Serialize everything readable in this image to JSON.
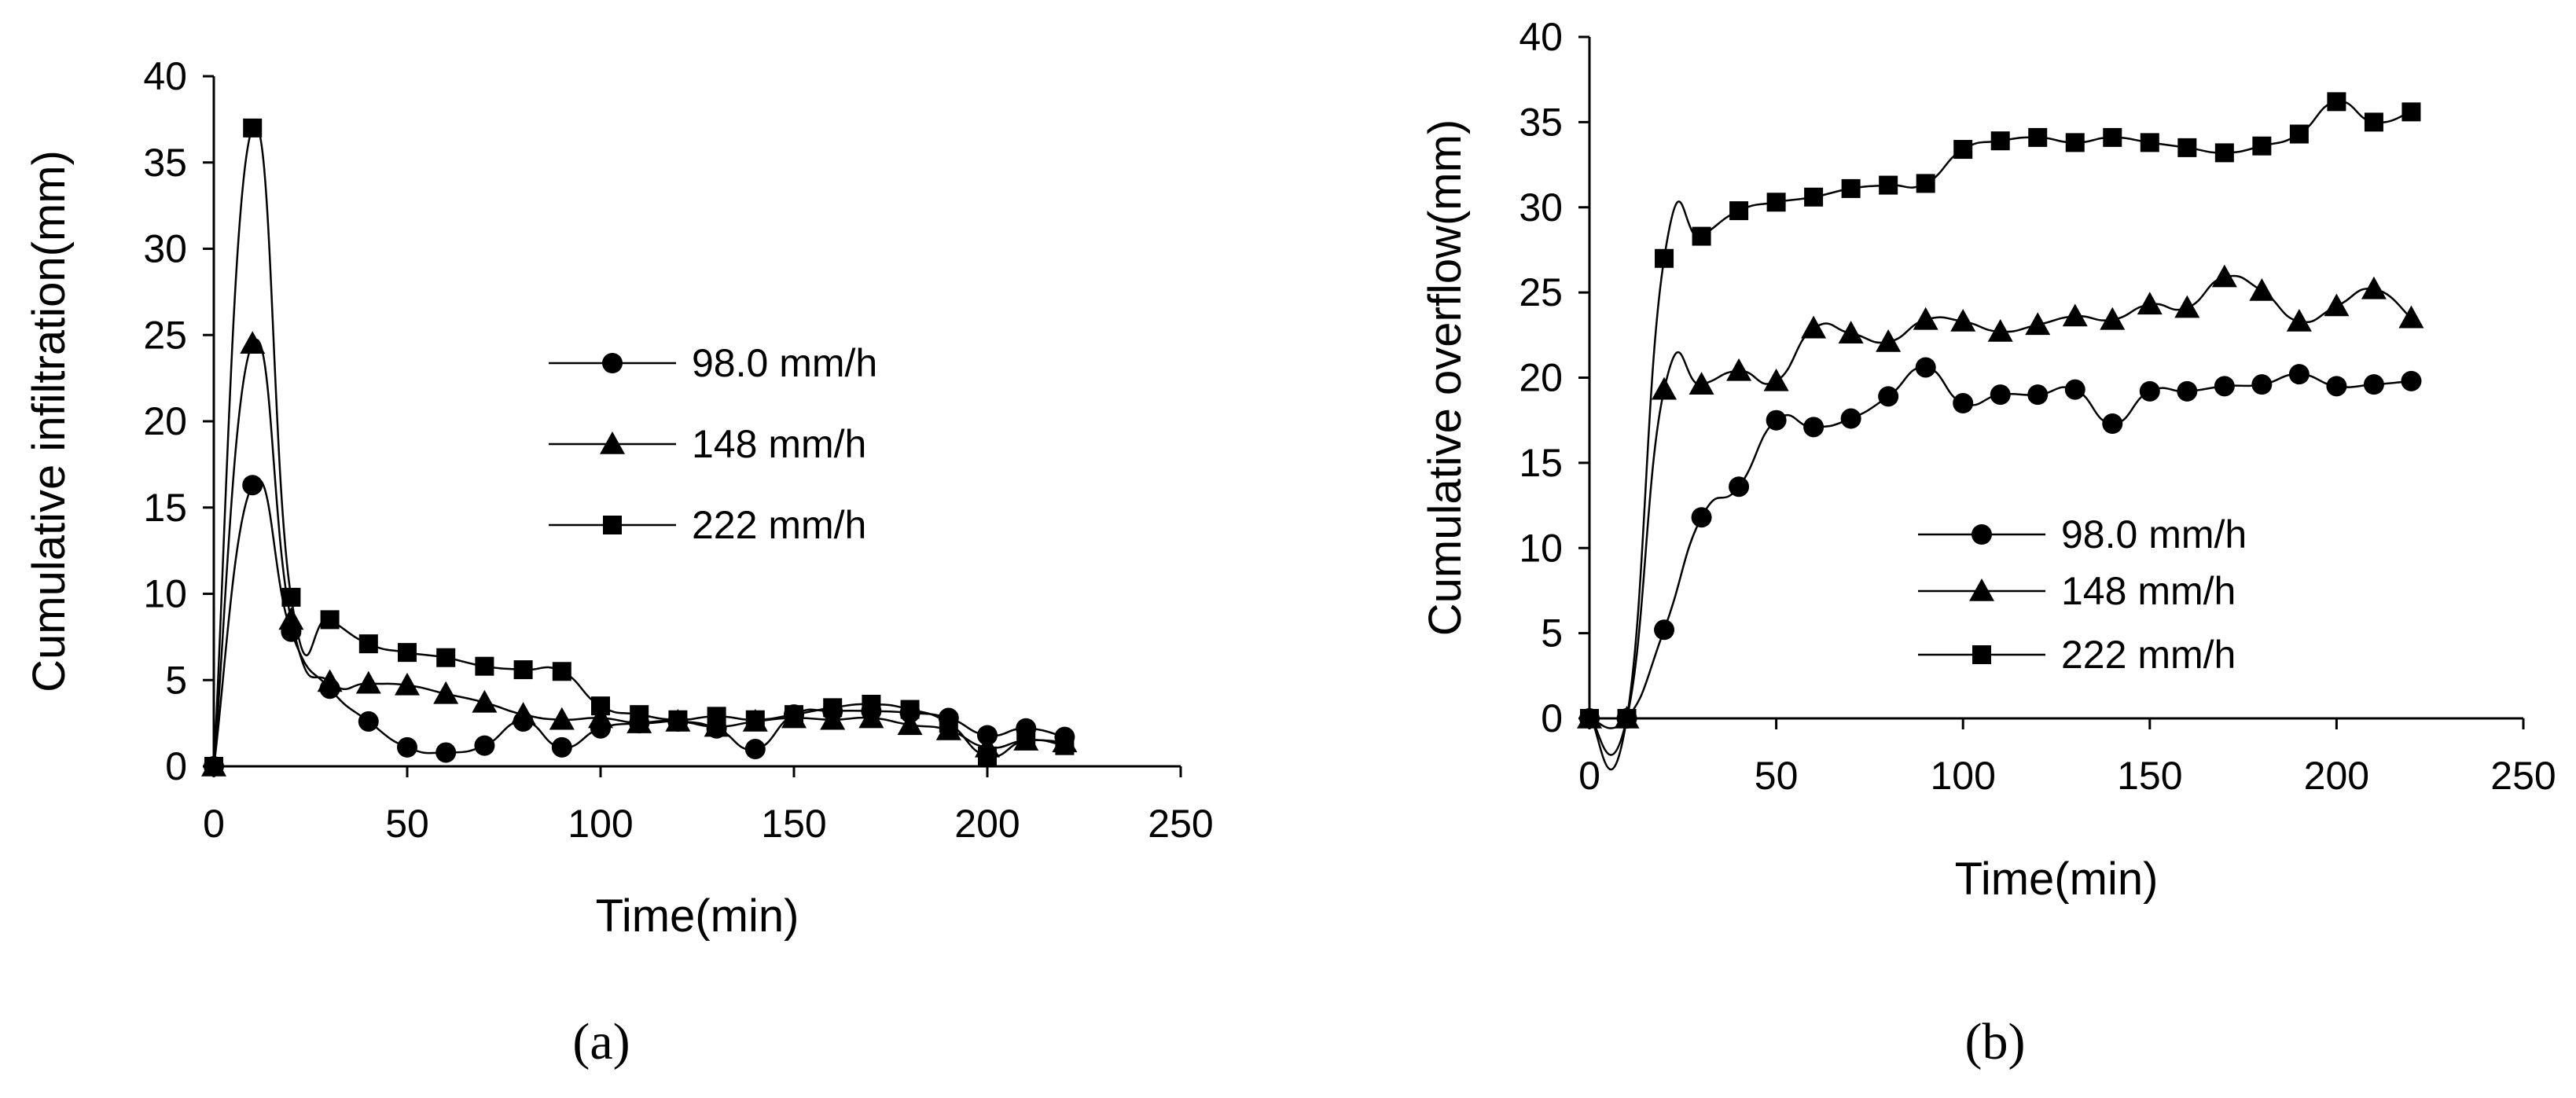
{
  "chart_data": [
    {
      "type": "line",
      "panel_label": "(a)",
      "xlabel": "Time(min)",
      "ylabel": "Cumulative infiltration(mm)",
      "xlim": [
        0,
        250
      ],
      "ylim": [
        0,
        40
      ],
      "xticks": [
        0,
        50,
        100,
        150,
        200,
        250
      ],
      "yticks": [
        0,
        5,
        10,
        15,
        20,
        25,
        30,
        35,
        40
      ],
      "x": [
        0,
        10,
        20,
        30,
        40,
        50,
        60,
        70,
        80,
        90,
        100,
        110,
        120,
        130,
        140,
        150,
        160,
        170,
        180,
        190,
        200,
        210,
        220
      ],
      "legend_position": "center-right",
      "series": [
        {
          "name": "98.0 mm/h",
          "marker": "circle",
          "values": [
            0,
            16.3,
            7.8,
            4.5,
            2.6,
            1.1,
            0.8,
            1.2,
            2.6,
            1.1,
            2.2,
            2.5,
            2.6,
            2.2,
            1.0,
            3.0,
            3.2,
            3.2,
            3.1,
            2.8,
            1.8,
            2.2,
            1.7
          ]
        },
        {
          "name": "148 mm/h",
          "marker": "triangle",
          "values": [
            0,
            24.5,
            8.5,
            4.9,
            4.8,
            4.7,
            4.2,
            3.7,
            3.0,
            2.7,
            2.8,
            2.5,
            2.6,
            2.3,
            2.6,
            2.8,
            2.7,
            2.8,
            2.4,
            2.1,
            1.1,
            1.5,
            1.4
          ]
        },
        {
          "name": "222 mm/h",
          "marker": "square",
          "values": [
            0,
            37.0,
            9.8,
            8.5,
            7.1,
            6.6,
            6.3,
            5.8,
            5.6,
            5.5,
            3.5,
            3.0,
            2.7,
            2.9,
            2.7,
            3.0,
            3.4,
            3.6,
            3.3,
            2.5,
            0.6,
            1.5,
            1.2
          ]
        }
      ]
    },
    {
      "type": "line",
      "panel_label": "(b)",
      "xlabel": "Time(min)",
      "ylabel": "Cumulative overflow(mm)",
      "xlim": [
        0,
        250
      ],
      "ylim": [
        0,
        40
      ],
      "xticks": [
        0,
        50,
        100,
        150,
        200,
        250
      ],
      "yticks": [
        0,
        5,
        10,
        15,
        20,
        25,
        30,
        35,
        40
      ],
      "x": [
        0,
        10,
        20,
        30,
        40,
        50,
        60,
        70,
        80,
        90,
        100,
        110,
        120,
        130,
        140,
        150,
        160,
        170,
        180,
        190,
        200,
        210,
        220
      ],
      "legend_position": "lower-center",
      "series": [
        {
          "name": "98.0 mm/h",
          "marker": "circle",
          "values": [
            0,
            0,
            5.2,
            11.8,
            13.6,
            17.5,
            17.1,
            17.6,
            18.9,
            20.6,
            18.5,
            19.0,
            19.0,
            19.3,
            17.3,
            19.2,
            19.2,
            19.5,
            19.6,
            20.2,
            19.5,
            19.6,
            19.8
          ]
        },
        {
          "name": "148 mm/h",
          "marker": "triangle",
          "values": [
            0,
            0,
            19.3,
            19.6,
            20.4,
            19.8,
            22.9,
            22.6,
            22.1,
            23.4,
            23.3,
            22.7,
            23.1,
            23.6,
            23.4,
            24.3,
            24.1,
            25.9,
            25.1,
            23.3,
            24.2,
            25.2,
            23.5
          ]
        },
        {
          "name": "222 mm/h",
          "marker": "square",
          "values": [
            0,
            0,
            27.0,
            28.3,
            29.8,
            30.3,
            30.6,
            31.1,
            31.3,
            31.4,
            33.4,
            33.9,
            34.1,
            33.8,
            34.1,
            33.8,
            33.5,
            33.2,
            33.6,
            34.3,
            36.2,
            35.0,
            35.6
          ]
        }
      ]
    }
  ]
}
